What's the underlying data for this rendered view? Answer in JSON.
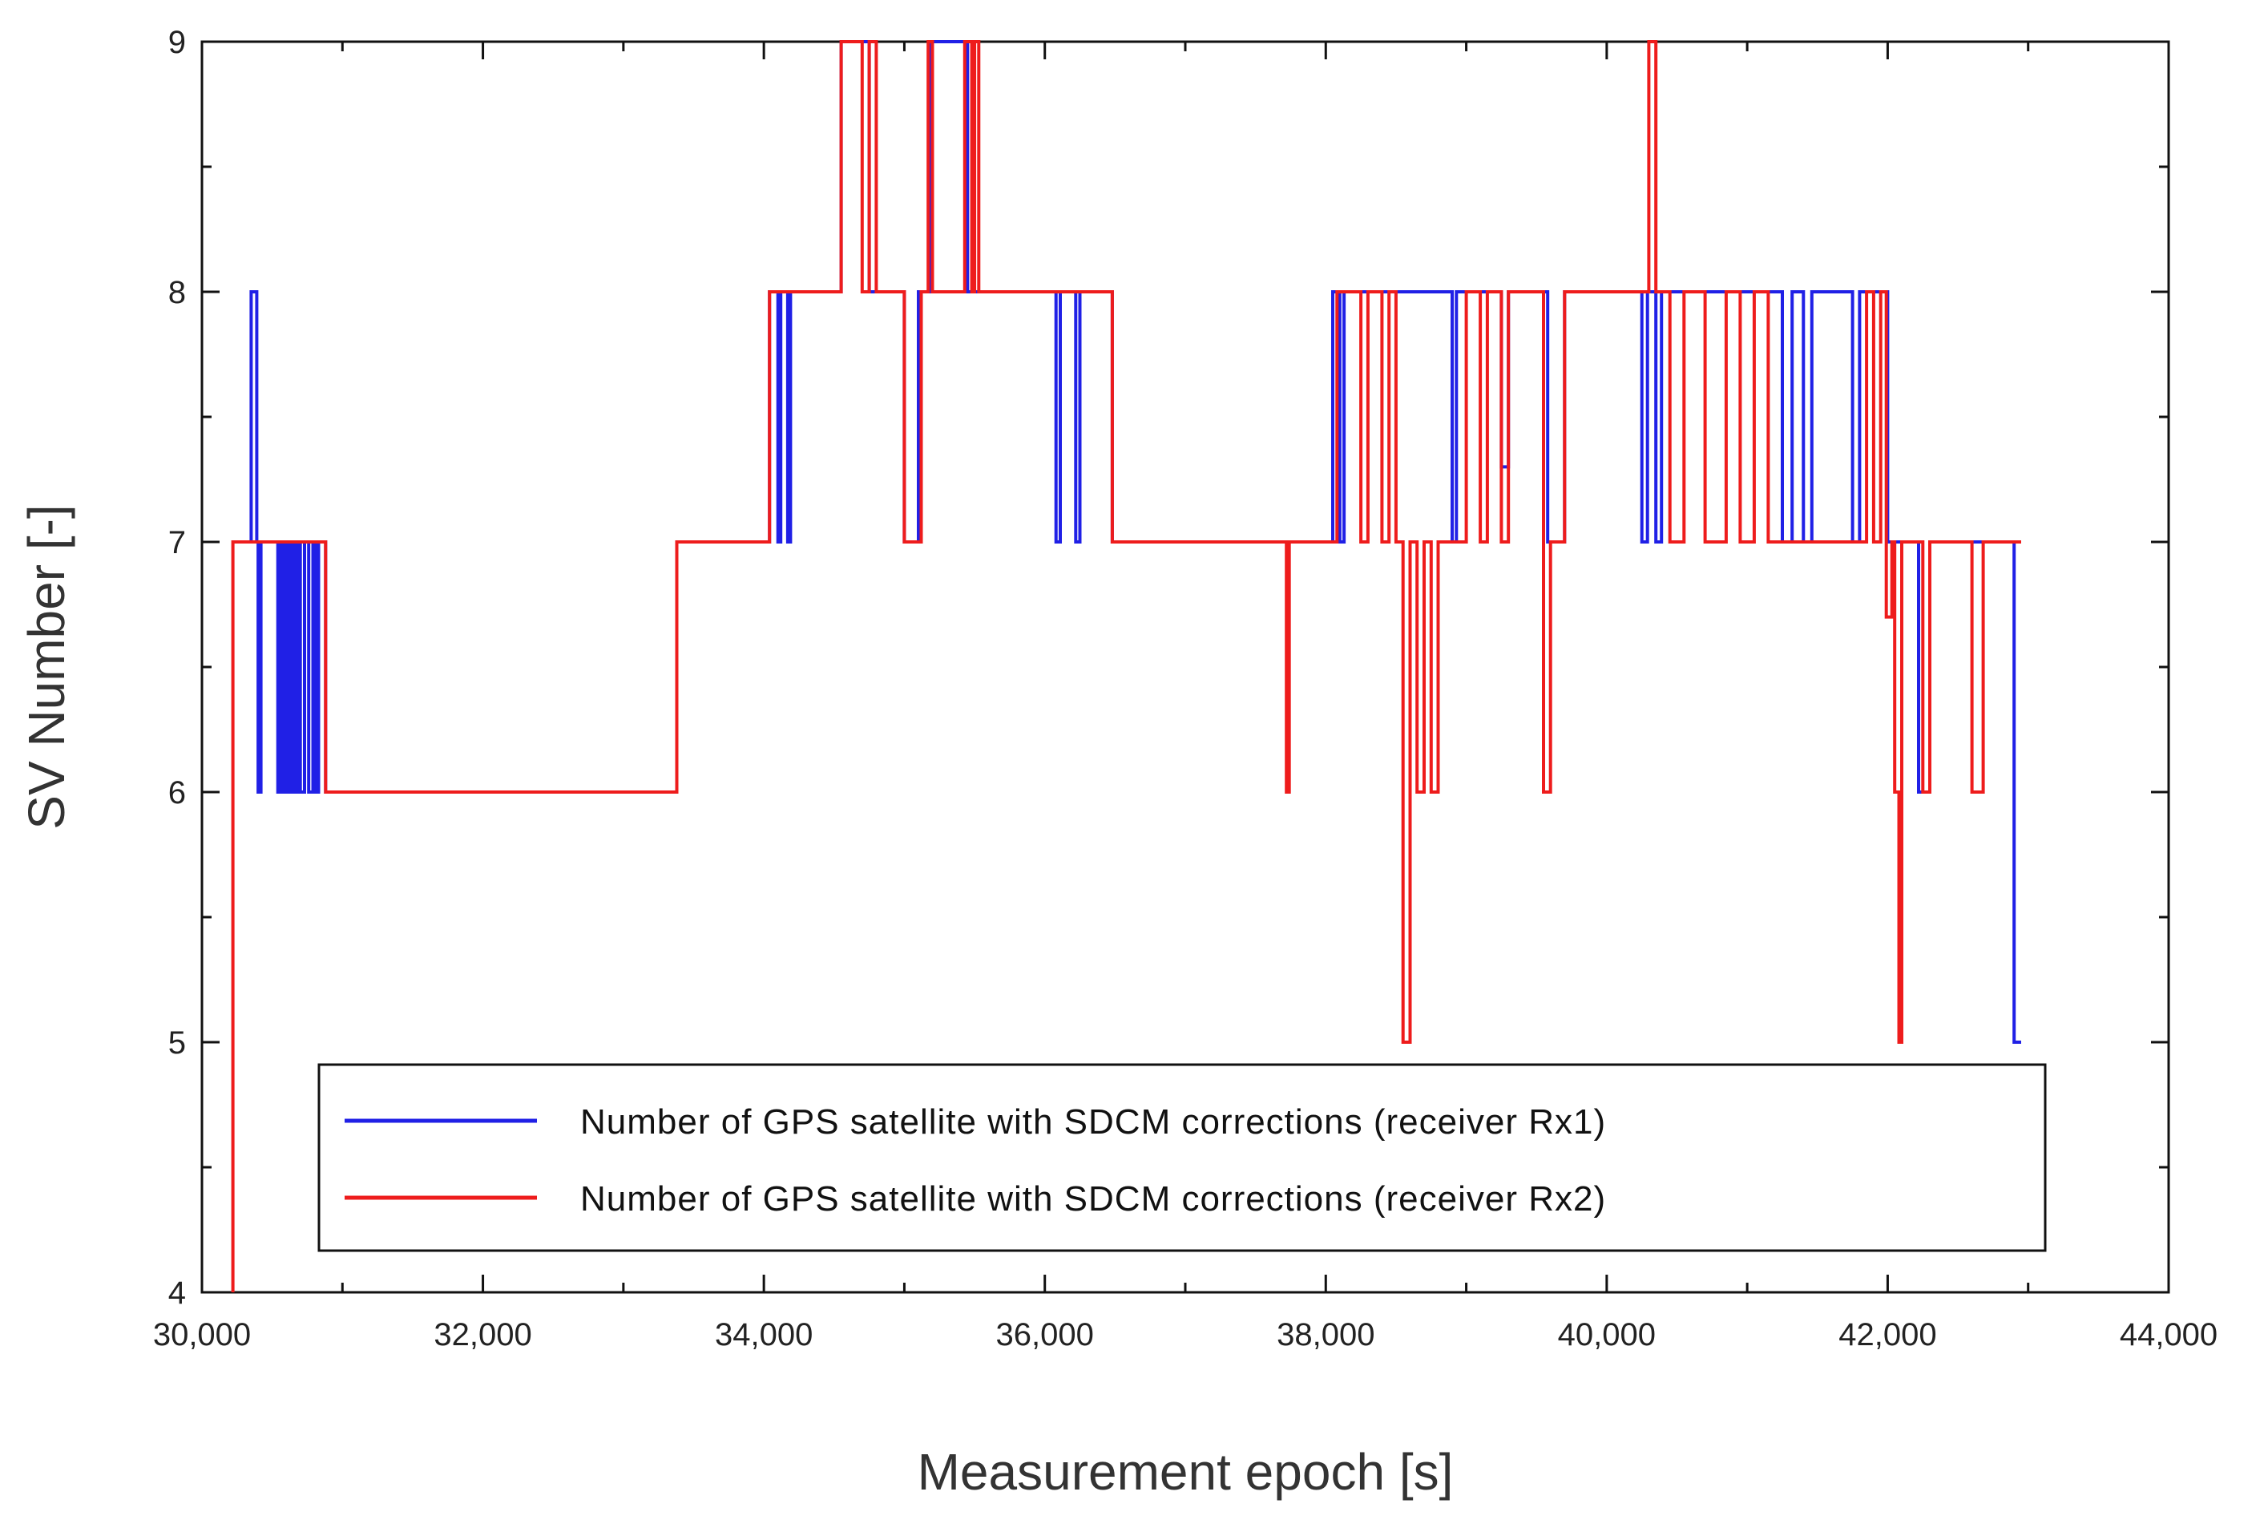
{
  "chart_data": {
    "type": "line",
    "step": true,
    "title": "",
    "xlabel": "Measurement epoch [s]",
    "ylabel": "SV Number [-]",
    "xlim": [
      30000,
      44000
    ],
    "ylim": [
      4,
      9
    ],
    "x_ticks": [
      30000,
      32000,
      34000,
      36000,
      38000,
      40000,
      42000,
      44000
    ],
    "x_tick_labels": [
      "30,000",
      "32,000",
      "34,000",
      "36,000",
      "38,000",
      "40,000",
      "42,000",
      "44,000"
    ],
    "y_ticks": [
      4,
      5,
      6,
      7,
      8,
      9
    ],
    "y_tick_labels": [
      "4",
      "5",
      "6",
      "7",
      "8",
      "9"
    ],
    "grid": false,
    "legend_position": "bottom-right",
    "series": [
      {
        "name": "Number of GPS satellite with SDCM corrections (receiver Rx1)",
        "color": "#2020e6",
        "points": [
          [
            30350,
            7
          ],
          [
            30350,
            8
          ],
          [
            30390,
            8
          ],
          [
            30390,
            7
          ],
          [
            30400,
            7
          ],
          [
            30400,
            6
          ],
          [
            30420,
            6
          ],
          [
            30420,
            7
          ],
          [
            30540,
            7
          ],
          [
            30540,
            6
          ],
          [
            30560,
            6
          ],
          [
            30560,
            7
          ],
          [
            30580,
            7
          ],
          [
            30580,
            6
          ],
          [
            30600,
            6
          ],
          [
            30600,
            7
          ],
          [
            30620,
            7
          ],
          [
            30620,
            6
          ],
          [
            30640,
            6
          ],
          [
            30640,
            7
          ],
          [
            30660,
            7
          ],
          [
            30660,
            6
          ],
          [
            30680,
            6
          ],
          [
            30680,
            7
          ],
          [
            30700,
            7
          ],
          [
            30700,
            6
          ],
          [
            30730,
            6
          ],
          [
            30730,
            7
          ],
          [
            30760,
            7
          ],
          [
            30760,
            6
          ],
          [
            30790,
            6
          ],
          [
            30790,
            7
          ],
          [
            30810,
            7
          ],
          [
            30810,
            6
          ],
          [
            30830,
            6
          ],
          [
            30830,
            7
          ],
          [
            30880,
            7
          ],
          [
            30880,
            6
          ],
          [
            33380,
            6
          ],
          [
            33380,
            7
          ],
          [
            34040,
            7
          ],
          [
            34040,
            8
          ],
          [
            34100,
            8
          ],
          [
            34100,
            7
          ],
          [
            34120,
            7
          ],
          [
            34120,
            8
          ],
          [
            34170,
            8
          ],
          [
            34170,
            7
          ],
          [
            34190,
            7
          ],
          [
            34190,
            8
          ],
          [
            34550,
            8
          ],
          [
            34550,
            9
          ],
          [
            34750,
            9
          ],
          [
            34750,
            8
          ],
          [
            35000,
            8
          ],
          [
            35000,
            7
          ],
          [
            35100,
            7
          ],
          [
            35100,
            8
          ],
          [
            35180,
            8
          ],
          [
            35180,
            9
          ],
          [
            35450,
            9
          ],
          [
            35450,
            8
          ],
          [
            36080,
            8
          ],
          [
            36080,
            7
          ],
          [
            36110,
            7
          ],
          [
            36110,
            8
          ],
          [
            36220,
            8
          ],
          [
            36220,
            7
          ],
          [
            36250,
            7
          ],
          [
            36250,
            8
          ],
          [
            36480,
            8
          ],
          [
            36480,
            7
          ],
          [
            38050,
            7
          ],
          [
            38050,
            8
          ],
          [
            38100,
            8
          ],
          [
            38100,
            7
          ],
          [
            38130,
            7
          ],
          [
            38130,
            8
          ],
          [
            38900,
            8
          ],
          [
            38900,
            7
          ],
          [
            38930,
            7
          ],
          [
            38930,
            8
          ],
          [
            39250,
            8
          ],
          [
            39250,
            7.3
          ],
          [
            39300,
            7.3
          ],
          [
            39300,
            8
          ],
          [
            39580,
            8
          ],
          [
            39580,
            7
          ],
          [
            39700,
            7
          ],
          [
            39700,
            8
          ],
          [
            40250,
            8
          ],
          [
            40250,
            7
          ],
          [
            40290,
            7
          ],
          [
            40290,
            8
          ],
          [
            40350,
            8
          ],
          [
            40350,
            7
          ],
          [
            40390,
            7
          ],
          [
            40390,
            8
          ],
          [
            41250,
            8
          ],
          [
            41250,
            7
          ],
          [
            41320,
            7
          ],
          [
            41320,
            8
          ],
          [
            41400,
            8
          ],
          [
            41400,
            7
          ],
          [
            41460,
            7
          ],
          [
            41460,
            8
          ],
          [
            41750,
            8
          ],
          [
            41750,
            7
          ],
          [
            41800,
            7
          ],
          [
            41800,
            8
          ],
          [
            42000,
            8
          ],
          [
            42000,
            7
          ],
          [
            42220,
            7
          ],
          [
            42220,
            6
          ],
          [
            42300,
            6
          ],
          [
            42300,
            7
          ],
          [
            42900,
            7
          ],
          [
            42900,
            5
          ],
          [
            42950,
            5
          ]
        ]
      },
      {
        "name": "Number of GPS satellite with SDCM corrections (receiver Rx2)",
        "color": "#ee1c1c",
        "points": [
          [
            30220,
            4
          ],
          [
            30220,
            7
          ],
          [
            30880,
            7
          ],
          [
            30880,
            6
          ],
          [
            33380,
            6
          ],
          [
            33380,
            7
          ],
          [
            34040,
            7
          ],
          [
            34040,
            8
          ],
          [
            34550,
            8
          ],
          [
            34550,
            9
          ],
          [
            34700,
            9
          ],
          [
            34700,
            8
          ],
          [
            34750,
            8
          ],
          [
            34750,
            9
          ],
          [
            34800,
            9
          ],
          [
            34800,
            8
          ],
          [
            35000,
            8
          ],
          [
            35000,
            7
          ],
          [
            35120,
            7
          ],
          [
            35120,
            8
          ],
          [
            35170,
            8
          ],
          [
            35170,
            9
          ],
          [
            35200,
            9
          ],
          [
            35200,
            8
          ],
          [
            35430,
            8
          ],
          [
            35430,
            9
          ],
          [
            35480,
            9
          ],
          [
            35480,
            8
          ],
          [
            35500,
            8
          ],
          [
            35500,
            9
          ],
          [
            35530,
            9
          ],
          [
            35530,
            8
          ],
          [
            36480,
            8
          ],
          [
            36480,
            7
          ],
          [
            37720,
            7
          ],
          [
            37720,
            6
          ],
          [
            37740,
            6
          ],
          [
            37740,
            7
          ],
          [
            38080,
            7
          ],
          [
            38080,
            8
          ],
          [
            38250,
            8
          ],
          [
            38250,
            7
          ],
          [
            38300,
            7
          ],
          [
            38300,
            8
          ],
          [
            38400,
            8
          ],
          [
            38400,
            7
          ],
          [
            38450,
            7
          ],
          [
            38450,
            8
          ],
          [
            38500,
            8
          ],
          [
            38500,
            7
          ],
          [
            38550,
            7
          ],
          [
            38550,
            5
          ],
          [
            38600,
            5
          ],
          [
            38600,
            7
          ],
          [
            38650,
            7
          ],
          [
            38650,
            6
          ],
          [
            38700,
            6
          ],
          [
            38700,
            7
          ],
          [
            38750,
            7
          ],
          [
            38750,
            6
          ],
          [
            38800,
            6
          ],
          [
            38800,
            7
          ],
          [
            39000,
            7
          ],
          [
            39000,
            8
          ],
          [
            39100,
            8
          ],
          [
            39100,
            7
          ],
          [
            39150,
            7
          ],
          [
            39150,
            8
          ],
          [
            39250,
            8
          ],
          [
            39250,
            7
          ],
          [
            39300,
            7
          ],
          [
            39300,
            8
          ],
          [
            39550,
            8
          ],
          [
            39550,
            6
          ],
          [
            39600,
            6
          ],
          [
            39600,
            7
          ],
          [
            39700,
            7
          ],
          [
            39700,
            8
          ],
          [
            40300,
            8
          ],
          [
            40300,
            9
          ],
          [
            40350,
            9
          ],
          [
            40350,
            8
          ],
          [
            40450,
            8
          ],
          [
            40450,
            7
          ],
          [
            40550,
            7
          ],
          [
            40550,
            8
          ],
          [
            40700,
            8
          ],
          [
            40700,
            7
          ],
          [
            40850,
            7
          ],
          [
            40850,
            8
          ],
          [
            40950,
            8
          ],
          [
            40950,
            7
          ],
          [
            41050,
            7
          ],
          [
            41050,
            8
          ],
          [
            41150,
            8
          ],
          [
            41150,
            7
          ],
          [
            41850,
            7
          ],
          [
            41850,
            8
          ],
          [
            41900,
            8
          ],
          [
            41900,
            7
          ],
          [
            41950,
            7
          ],
          [
            41950,
            8
          ],
          [
            41990,
            8
          ],
          [
            41990,
            6.7
          ],
          [
            42030,
            6.7
          ],
          [
            42030,
            7
          ],
          [
            42050,
            7
          ],
          [
            42050,
            6
          ],
          [
            42080,
            6
          ],
          [
            42080,
            5
          ],
          [
            42100,
            5
          ],
          [
            42100,
            7
          ],
          [
            42250,
            7
          ],
          [
            42250,
            6
          ],
          [
            42300,
            6
          ],
          [
            42300,
            7
          ],
          [
            42600,
            7
          ],
          [
            42600,
            6
          ],
          [
            42680,
            6
          ],
          [
            42680,
            7
          ],
          [
            42950,
            7
          ]
        ]
      }
    ]
  }
}
